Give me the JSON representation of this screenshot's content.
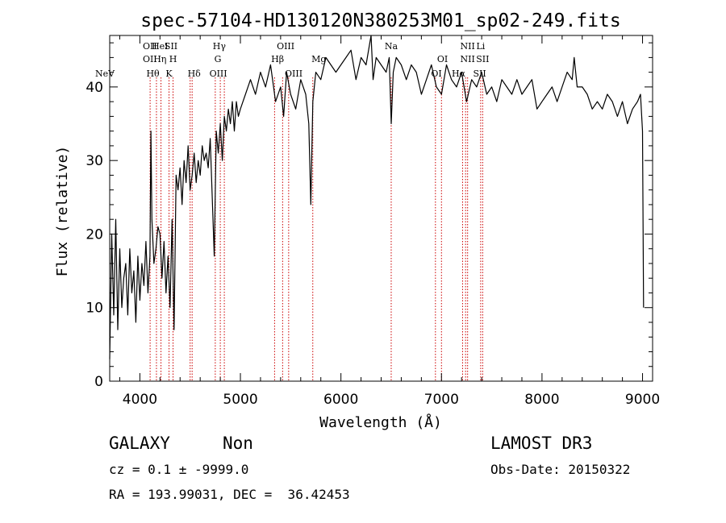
{
  "chart_data": {
    "type": "line",
    "title": "spec-57104-HD130120N380253M01_sp02-249.fits",
    "xlabel": "Wavelength (Å)",
    "ylabel": "Flux (relative)",
    "xlim": [
      3700,
      9100
    ],
    "ylim": [
      0,
      47
    ],
    "xticks": [
      4000,
      5000,
      6000,
      7000,
      8000,
      9000
    ],
    "yticks": [
      0,
      10,
      20,
      30,
      40
    ],
    "grid": false,
    "series": [
      {
        "x": [
          3700,
          3720,
          3740,
          3760,
          3780,
          3800,
          3820,
          3840,
          3860,
          3880,
          3900,
          3920,
          3940,
          3960,
          3980,
          4000,
          4020,
          4040,
          4060,
          4080,
          4100,
          4110,
          4120,
          4140,
          4160,
          4180,
          4200,
          4220,
          4240,
          4260,
          4280,
          4300,
          4320,
          4340,
          4360,
          4380,
          4400,
          4420,
          4440,
          4460,
          4480,
          4500,
          4520,
          4540,
          4560,
          4580,
          4600,
          4620,
          4640,
          4660,
          4680,
          4700,
          4720,
          4740,
          4760,
          4780,
          4800,
          4820,
          4840,
          4860,
          4880,
          4900,
          4920,
          4940,
          4960,
          4980,
          5000,
          5050,
          5100,
          5150,
          5200,
          5250,
          5300,
          5350,
          5400,
          5430,
          5460,
          5500,
          5550,
          5600,
          5650,
          5680,
          5700,
          5720,
          5750,
          5800,
          5850,
          5900,
          5950,
          6000,
          6050,
          6100,
          6150,
          6200,
          6250,
          6300,
          6320,
          6350,
          6400,
          6450,
          6480,
          6500,
          6520,
          6550,
          6600,
          6650,
          6700,
          6750,
          6800,
          6850,
          6900,
          6950,
          7000,
          7050,
          7100,
          7150,
          7200,
          7250,
          7300,
          7350,
          7400,
          7450,
          7500,
          7550,
          7600,
          7650,
          7700,
          7750,
          7800,
          7850,
          7900,
          7950,
          8000,
          8050,
          8100,
          8150,
          8200,
          8250,
          8300,
          8320,
          8350,
          8400,
          8450,
          8500,
          8550,
          8600,
          8650,
          8700,
          8750,
          8800,
          8850,
          8900,
          8950,
          8980,
          9000,
          9010
        ],
        "y": [
          3,
          20,
          9,
          22,
          7,
          18,
          10,
          14,
          16,
          9,
          18,
          12,
          15,
          8,
          17,
          11,
          16,
          13,
          19,
          12,
          17,
          34,
          22,
          16,
          18,
          21,
          20,
          14,
          19,
          12,
          17,
          10,
          22,
          7,
          28,
          26,
          29,
          24,
          30,
          27,
          32,
          26,
          28,
          31,
          27,
          30,
          28,
          32,
          30,
          31,
          29,
          33,
          25,
          17,
          34,
          31,
          35,
          30,
          36,
          34,
          37,
          35,
          38,
          34,
          38,
          36,
          37,
          39,
          41,
          39,
          42,
          40,
          43,
          38,
          40,
          36,
          42,
          39,
          37,
          41,
          39,
          35,
          24,
          38,
          42,
          41,
          44,
          43,
          42,
          43,
          44,
          45,
          41,
          44,
          43,
          47,
          41,
          44,
          43,
          42,
          44,
          35,
          42,
          44,
          43,
          41,
          43,
          42,
          39,
          41,
          43,
          40,
          39,
          43,
          41,
          40,
          42,
          38,
          41,
          40,
          42,
          39,
          40,
          38,
          41,
          40,
          39,
          41,
          39,
          40,
          41,
          37,
          38,
          39,
          40,
          38,
          40,
          42,
          41,
          44,
          40,
          40,
          39,
          37,
          38,
          37,
          39,
          38,
          36,
          38,
          35,
          37,
          38,
          39,
          34,
          10
        ]
      }
    ],
    "line_markers": [
      {
        "name": "NeV",
        "x": 3426,
        "row": 3
      },
      {
        "name": "OII",
        "x": 4100,
        "row": 1
      },
      {
        "name": "OII",
        "x": 4100,
        "row": 2
      },
      {
        "name": "Hθ",
        "x": 4130,
        "row": 3
      },
      {
        "name": "HeI",
        "x": 4200,
        "row": 1
      },
      {
        "name": "Hη",
        "x": 4200,
        "row": 2
      },
      {
        "name": "K",
        "x": 4290,
        "row": 3
      },
      {
        "name": "SII",
        "x": 4310,
        "row": 1
      },
      {
        "name": "H",
        "x": 4330,
        "row": 2
      },
      {
        "name": "Hδ",
        "x": 4540,
        "row": 3
      },
      {
        "name": "Hγ",
        "x": 4790,
        "row": 1
      },
      {
        "name": "G",
        "x": 4775,
        "row": 2
      },
      {
        "name": "OIII",
        "x": 4780,
        "row": 3
      },
      {
        "name": "OIII",
        "x": 5450,
        "row": 1
      },
      {
        "name": "Hβ",
        "x": 5370,
        "row": 2
      },
      {
        "name": "OIII",
        "x": 5530,
        "row": 3
      },
      {
        "name": "Mg",
        "x": 5780,
        "row": 2
      },
      {
        "name": "Na",
        "x": 6500,
        "row": 1
      },
      {
        "name": "OI",
        "x": 7010,
        "row": 2
      },
      {
        "name": "OI",
        "x": 6950,
        "row": 3
      },
      {
        "name": "NII",
        "x": 7260,
        "row": 1
      },
      {
        "name": "NII",
        "x": 7260,
        "row": 2
      },
      {
        "name": "Hα",
        "x": 7170,
        "row": 3
      },
      {
        "name": "Li",
        "x": 7390,
        "row": 1
      },
      {
        "name": "SII",
        "x": 7410,
        "row": 2
      },
      {
        "name": "SII",
        "x": 7380,
        "row": 3
      }
    ],
    "marker_lines_x": [
      4102,
      4165,
      4210,
      4290,
      4330,
      4500,
      4520,
      4750,
      4800,
      4840,
      5340,
      5420,
      5480,
      5720,
      6500,
      6940,
      7000,
      7210,
      7240,
      7260,
      7390,
      7410
    ],
    "colors": {
      "spectrum": "#000000",
      "marker_line": "#cc0000",
      "background": "#ffffff"
    }
  },
  "info": {
    "classification": "GALAXY",
    "subclass": "Non",
    "survey": "LAMOST DR3",
    "redshift_line": "cz = 0.1 ± -9999.0",
    "obs_date_line": "Obs-Date: 20150322",
    "coords_line": "RA = 193.99031, DEC =  36.42453"
  }
}
